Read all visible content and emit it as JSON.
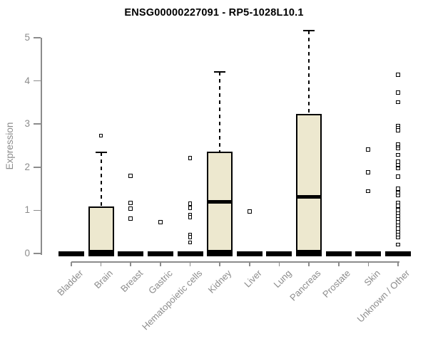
{
  "chart_data": {
    "type": "boxplot",
    "title": "ENSG00000227091 - RP5-1028L10.1",
    "ylabel": "Expression",
    "xlabel": "",
    "ylim": [
      0,
      5
    ],
    "yticks": [
      0,
      1,
      2,
      3,
      4,
      5
    ],
    "grid": false,
    "legend": "none",
    "categories": [
      "Bladder",
      "Brain",
      "Breast",
      "Gastric",
      "Hematopoietic cells",
      "Kidney",
      "Liver",
      "Lung",
      "Pancreas",
      "Prostate",
      "Skin",
      "Unknown / Other"
    ],
    "boxes": [
      {
        "category": "Bladder",
        "q1": 0,
        "median": 0,
        "q3": 0,
        "whisker_low": 0,
        "whisker_high": 0,
        "outliers": []
      },
      {
        "category": "Brain",
        "q1": 0,
        "median": 0.02,
        "q3": 1.09,
        "whisker_low": 0,
        "whisker_high": 2.34,
        "outliers": [
          2.73
        ]
      },
      {
        "category": "Breast",
        "q1": 0,
        "median": 0,
        "q3": 0,
        "whisker_low": 0,
        "whisker_high": 0,
        "outliers": [
          1.8,
          1.17,
          1.04,
          0.81
        ]
      },
      {
        "category": "Gastric",
        "q1": 0,
        "median": 0,
        "q3": 0,
        "whisker_low": 0,
        "whisker_high": 0,
        "outliers": [
          0.72
        ]
      },
      {
        "category": "Hematopoietic cells",
        "q1": 0,
        "median": 0,
        "q3": 0,
        "whisker_low": 0,
        "whisker_high": 0,
        "outliers": [
          2.21,
          1.15,
          1.05,
          0.89,
          0.84,
          0.43,
          0.38,
          0.25
        ]
      },
      {
        "category": "Kidney",
        "q1": 0,
        "median": 1.2,
        "q3": 2.36,
        "whisker_low": 0,
        "whisker_high": 4.21,
        "outliers": []
      },
      {
        "category": "Liver",
        "q1": 0,
        "median": 0,
        "q3": 0,
        "whisker_low": 0,
        "whisker_high": 0,
        "outliers": [
          0.97
        ]
      },
      {
        "category": "Lung",
        "q1": 0,
        "median": 0,
        "q3": 0,
        "whisker_low": 0,
        "whisker_high": 0,
        "outliers": []
      },
      {
        "category": "Pancreas",
        "q1": 0,
        "median": 1.32,
        "q3": 3.23,
        "whisker_low": 0,
        "whisker_high": 5.16,
        "outliers": []
      },
      {
        "category": "Prostate",
        "q1": 0,
        "median": 0,
        "q3": 0,
        "whisker_low": 0,
        "whisker_high": 0,
        "outliers": []
      },
      {
        "category": "Skin",
        "q1": 0,
        "median": 0,
        "q3": 0,
        "whisker_low": 0,
        "whisker_high": 0,
        "outliers": [
          2.41,
          1.88,
          1.44
        ]
      },
      {
        "category": "Unknown / Other",
        "q1": 0,
        "median": 0,
        "q3": 0,
        "whisker_low": 0,
        "whisker_high": 0,
        "outliers": [
          4.14,
          3.73,
          3.5,
          2.95,
          2.9,
          2.85,
          2.52,
          2.46,
          2.43,
          2.28,
          2.13,
          2.05,
          1.97,
          1.78,
          1.5,
          1.4,
          1.34,
          1.17,
          1.1,
          1.0,
          0.92,
          0.86,
          0.8,
          0.72,
          0.64,
          0.57,
          0.5,
          0.43,
          0.37,
          0.2
        ]
      }
    ],
    "colors": {
      "box_fill": "#EDE8CF",
      "box_stroke": "#000000",
      "median": "#000000",
      "axis": "#8C8C8C",
      "tick_label": "#8C8C8C",
      "title_text": "#000000",
      "outlier_fill": "#FFFFFF",
      "background": "#FFFFFF"
    }
  }
}
